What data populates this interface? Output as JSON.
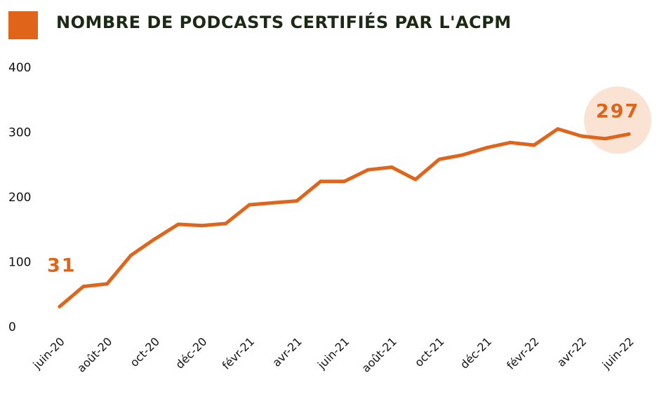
{
  "colors": {
    "accent": "#e06419",
    "highlight_circle": "#fbe3d4",
    "title_text": "#1b2a12"
  },
  "header": {
    "title": "NOMBRE DE PODCASTS CERTIFIÉS PAR L'ACPM"
  },
  "chart_data": {
    "type": "line",
    "title": "NOMBRE DE PODCASTS CERTIFIÉS PAR L'ACPM",
    "xlabel": "",
    "ylabel": "",
    "ylim": [
      0,
      400
    ],
    "yticks": [
      "0",
      "100",
      "200",
      "300",
      "400"
    ],
    "grid": false,
    "x_tick_labels": [
      "juin-20",
      "août-20",
      "oct-20",
      "déc-20",
      "févr-21",
      "avr-21",
      "juin-21",
      "août-21",
      "oct-21",
      "déc-21",
      "févr-22",
      "avr-22",
      "juin-22"
    ],
    "x": [
      "juin-20",
      "juil-20",
      "août-20",
      "sept-20",
      "oct-20",
      "nov-20",
      "déc-20",
      "janv-21",
      "févr-21",
      "mars-21",
      "avr-21",
      "mai-21",
      "juin-21",
      "juil-21",
      "août-21",
      "sept-21",
      "oct-21",
      "nov-21",
      "déc-21",
      "janv-22",
      "févr-22",
      "mars-22",
      "avr-22",
      "mai-22",
      "juin-22"
    ],
    "series": [
      {
        "values": [
          31,
          62,
          66,
          110,
          135,
          158,
          156,
          159,
          188,
          191,
          194,
          224,
          224,
          242,
          246,
          227,
          258,
          265,
          276,
          284,
          280,
          305,
          294,
          290,
          297
        ]
      }
    ],
    "annotations": [
      {
        "label": "31",
        "index": 0
      },
      {
        "label": "297",
        "index": 24
      }
    ]
  }
}
